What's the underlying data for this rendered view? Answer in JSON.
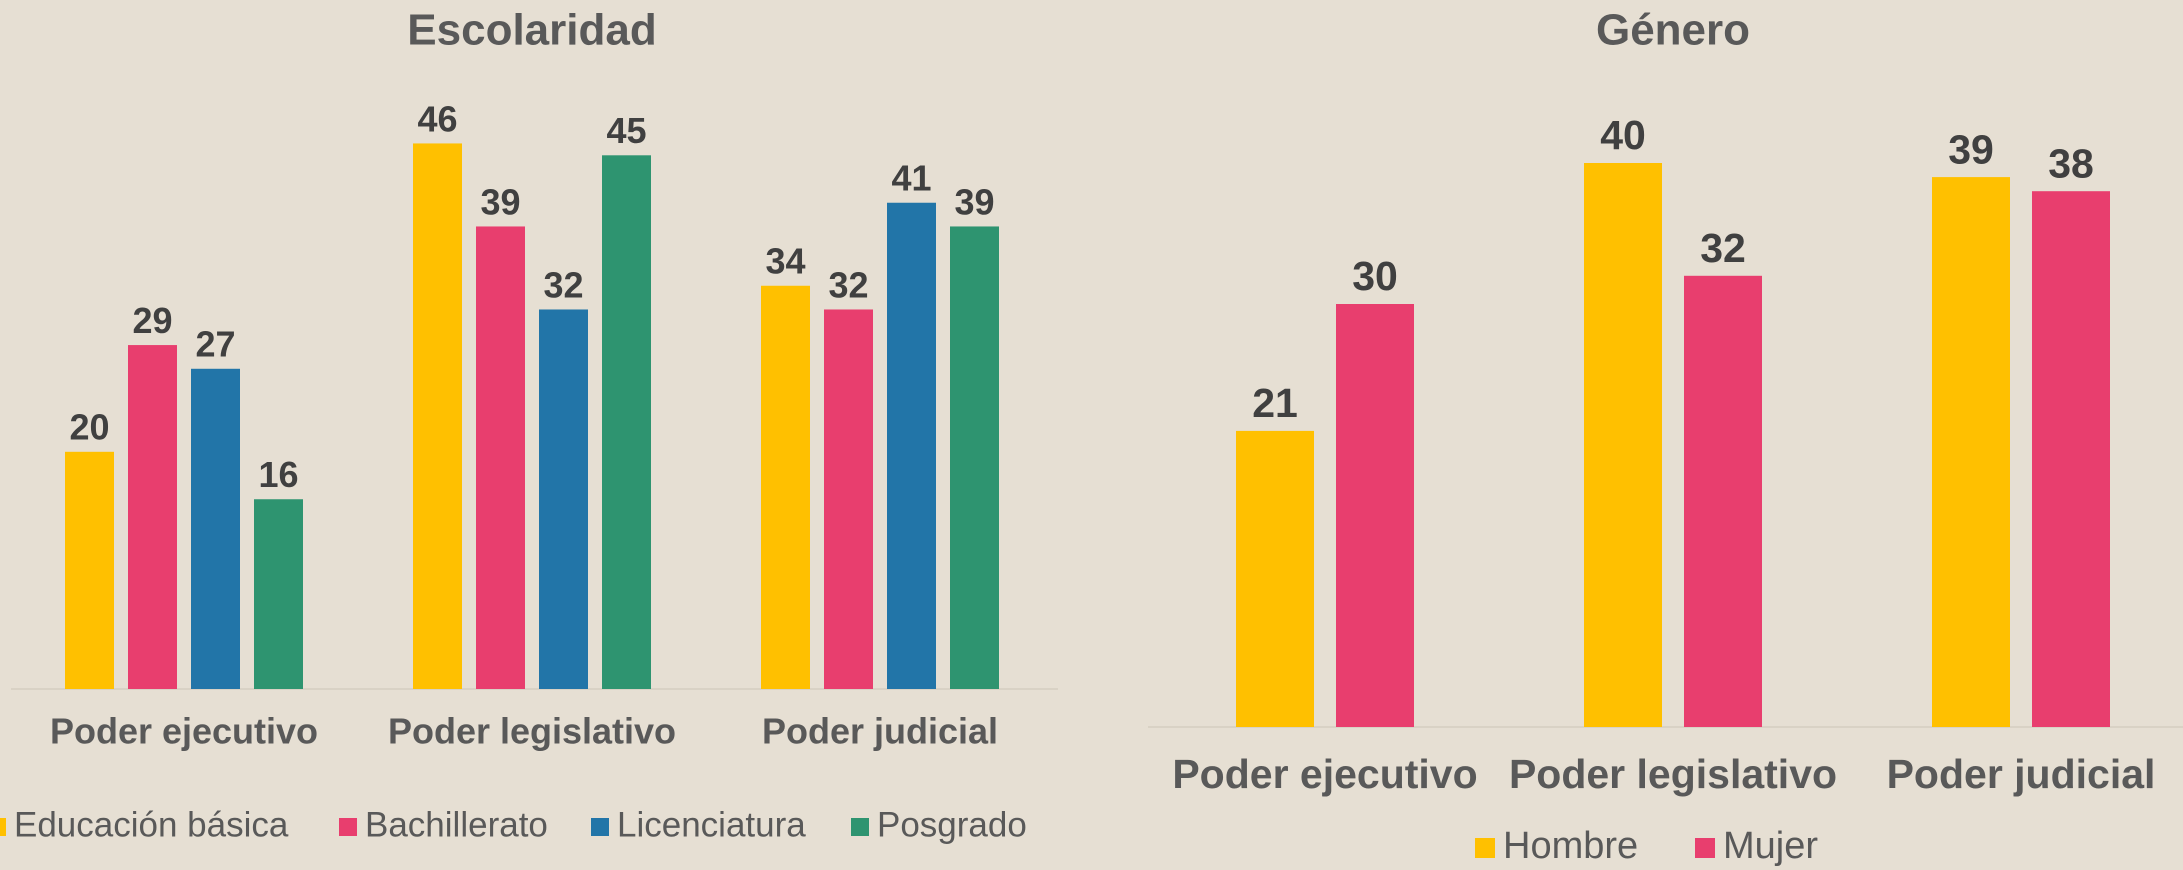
{
  "chart_data": [
    {
      "type": "bar",
      "title": "Escolaridad",
      "categories": [
        "Poder ejecutivo",
        "Poder legislativo",
        "Poder judicial"
      ],
      "series": [
        {
          "name": "Educación básica",
          "color": "#ffc000",
          "values": [
            20,
            46,
            34
          ]
        },
        {
          "name": "Bachillerato",
          "color": "#e83e6e",
          "values": [
            29,
            39,
            32
          ]
        },
        {
          "name": "Licenciatura",
          "color": "#2275a8",
          "values": [
            27,
            32,
            41
          ]
        },
        {
          "name": "Posgrado",
          "color": "#2e9470",
          "values": [
            16,
            45,
            39
          ]
        }
      ],
      "legend": "bottom"
    },
    {
      "type": "bar",
      "title": "Género",
      "categories": [
        "Poder ejecutivo",
        "Poder legislativo",
        "Poder judicial"
      ],
      "series": [
        {
          "name": "Hombre",
          "color": "#ffc000",
          "values": [
            21,
            40,
            39
          ]
        },
        {
          "name": "Mujer",
          "color": "#e83e6e",
          "values": [
            30,
            32,
            38
          ]
        }
      ],
      "legend": "bottom"
    }
  ]
}
